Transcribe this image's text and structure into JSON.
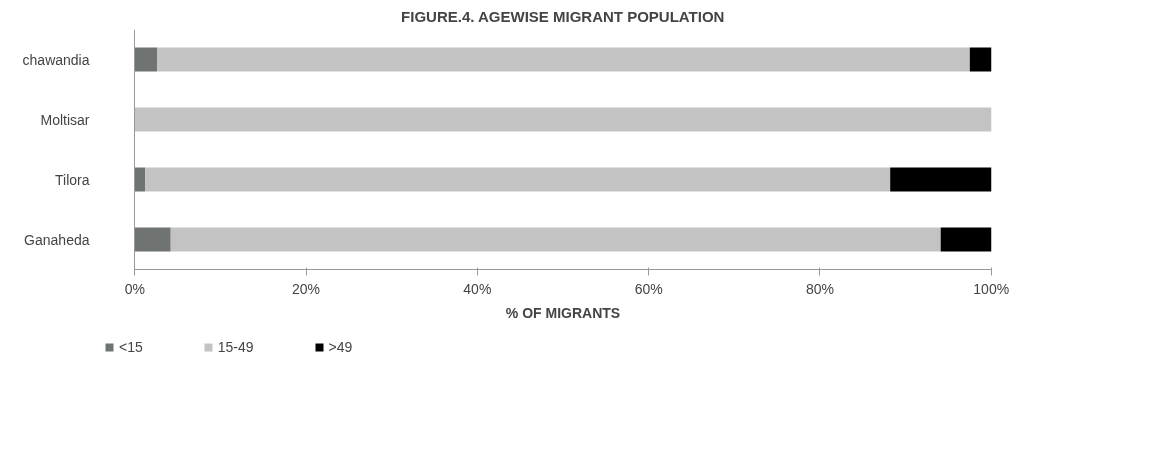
{
  "chart_data": {
    "type": "bar",
    "title": "FIGURE.4. AGEWISE MIGRANT POPULATION",
    "xlabel": "% OF MIGRANTS",
    "orientation": "horizontal",
    "stacked": true,
    "categories": [
      "chawandia",
      "Moltisar",
      "Tilora",
      "Ganaheda"
    ],
    "series": [
      {
        "name": "<15",
        "color": "#6f7372",
        "values": [
          2.6,
          0,
          1.2,
          4.2
        ]
      },
      {
        "name": "15-49",
        "color": "#c3c3c3",
        "values": [
          94.9,
          100,
          87.0,
          89.9
        ]
      },
      {
        "name": ">49",
        "color": "#000000",
        "values": [
          2.5,
          0,
          11.8,
          5.9
        ]
      }
    ],
    "xlim": [
      0,
      100
    ],
    "xticks": [
      {
        "value": 0,
        "label": "0%"
      },
      {
        "value": 20,
        "label": "20%"
      },
      {
        "value": 40,
        "label": "40%"
      },
      {
        "value": 60,
        "label": "60%"
      },
      {
        "value": 80,
        "label": "80%"
      },
      {
        "value": 100,
        "label": "100%"
      }
    ],
    "grid": false,
    "legend": "bottom left"
  }
}
